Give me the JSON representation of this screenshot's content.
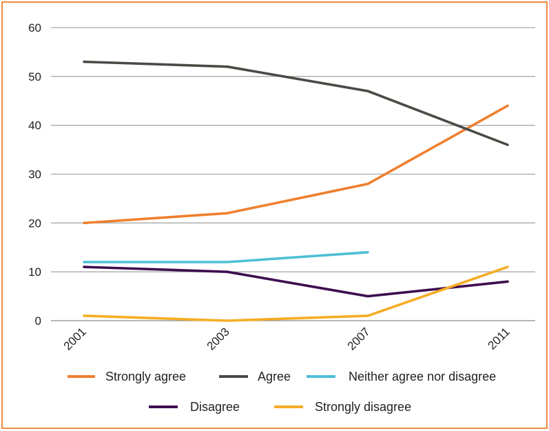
{
  "chart_data": {
    "type": "line",
    "categories": [
      "2001",
      "2003",
      "2007",
      "2011"
    ],
    "ylim": [
      0,
      60
    ],
    "yticks": [
      "0",
      "10",
      "20",
      "30",
      "40",
      "50",
      "60"
    ],
    "grid": true,
    "legend_position": "bottom",
    "series": [
      {
        "name": "Strongly agree",
        "color": "#ef7f2e",
        "values": [
          20,
          22,
          28,
          44
        ]
      },
      {
        "name": "Agree",
        "color": "#4a4a45",
        "values": [
          53,
          52,
          47,
          36
        ]
      },
      {
        "name": "Neither agree nor disagree",
        "color": "#4dbfd6",
        "values": [
          12,
          12,
          14,
          null
        ]
      },
      {
        "name": "Disagree",
        "color": "#3f0d4f",
        "values": [
          11,
          10,
          5,
          8
        ]
      },
      {
        "name": "Strongly disagree",
        "color": "#f6ac24",
        "values": [
          1,
          0,
          1,
          11
        ]
      }
    ]
  }
}
